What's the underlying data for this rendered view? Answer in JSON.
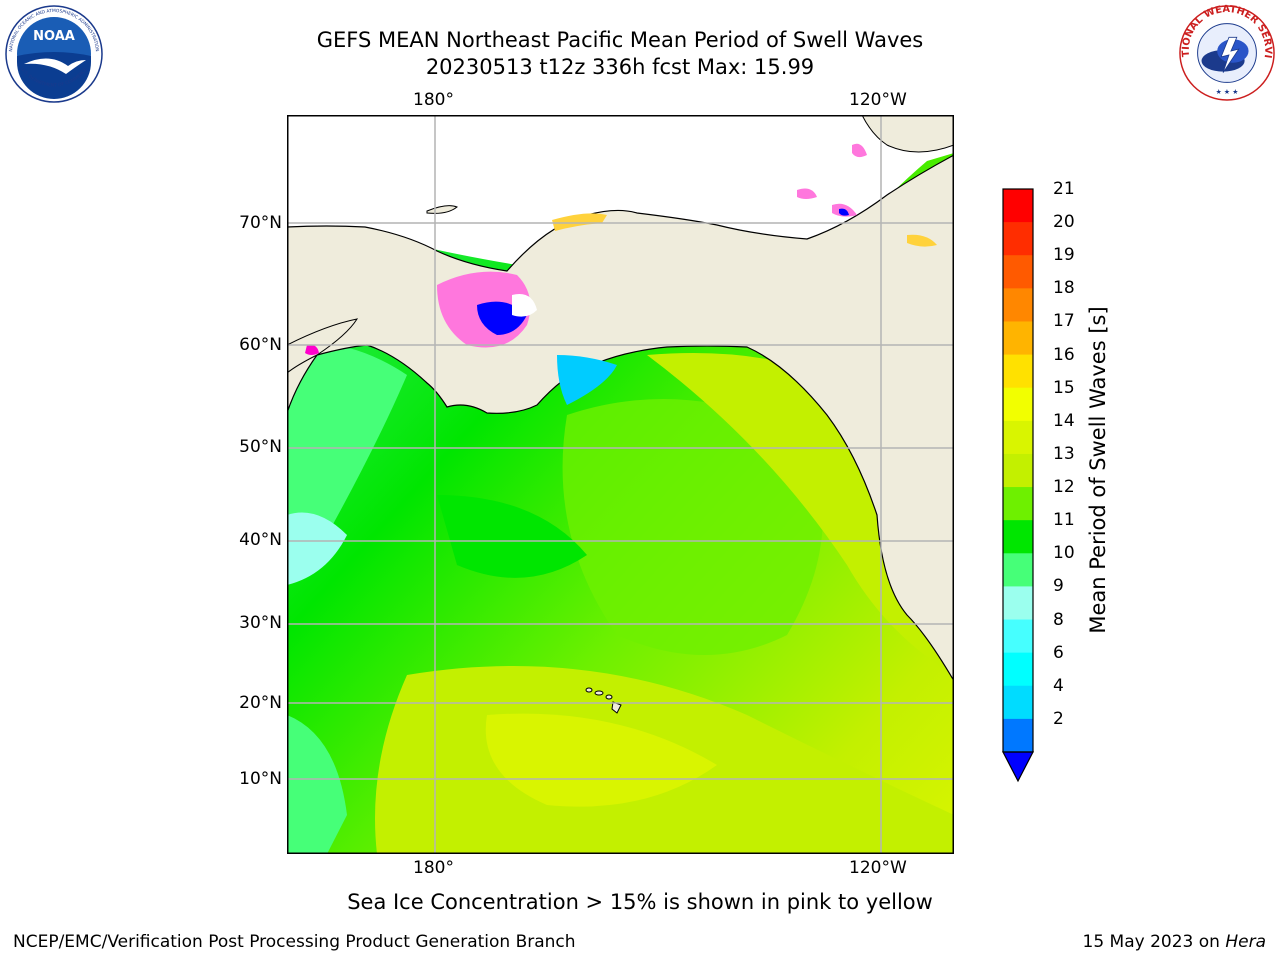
{
  "title": {
    "line1": "GEFS MEAN Northeast Pacific Mean Period of Swell Waves",
    "line2": "20230513 t12z 336h fcst   Max: 15.99"
  },
  "map": {
    "lon_labels_top": [
      "180°",
      "120°W"
    ],
    "lon_labels_bottom": [
      "180°",
      "120°W"
    ],
    "lat_labels": [
      "70°N",
      "60°N",
      "50°N",
      "40°N",
      "30°N",
      "20°N",
      "10°N"
    ],
    "colors": {
      "land": "#efecdc",
      "grid": "#b4b4b4",
      "coast": "#000000",
      "ice_pink": "#ff77dd",
      "ice_yellow": "#ffd23c"
    }
  },
  "colorbar": {
    "label": "Mean Period of Swell Waves [s]",
    "ticks": [
      "21",
      "20",
      "19",
      "18",
      "17",
      "16",
      "15",
      "14",
      "13",
      "12",
      "11",
      "10",
      "9",
      "8",
      "6",
      "4",
      "2"
    ],
    "colors": [
      "#ff0000",
      "#ff2d00",
      "#ff5a00",
      "#ff8700",
      "#ffb400",
      "#ffe100",
      "#f2ff00",
      "#d9f500",
      "#c3f000",
      "#6ef000",
      "#00e600",
      "#46ff78",
      "#9bffee",
      "#46ffff",
      "#00ffff",
      "#00dcff",
      "#0078ff"
    ],
    "underflow_color": "#0000ff"
  },
  "caption": "Sea Ice Concentration > 15% is shown in pink to yellow",
  "footer": {
    "left": "NCEP/EMC/Verification Post Processing Product Generation Branch",
    "date": "15 May 2023 on",
    "machine": "Hera"
  },
  "logos": {
    "noaa_text": "NOAA",
    "noaa_ring_top": "NATIONAL OCEANIC AND ATMOSPHERIC ADMINISTRATION",
    "noaa_ring_bottom": "U.S. DEPARTMENT OF COMMERCE",
    "nws_ring": "NATIONAL WEATHER SERVICE"
  }
}
